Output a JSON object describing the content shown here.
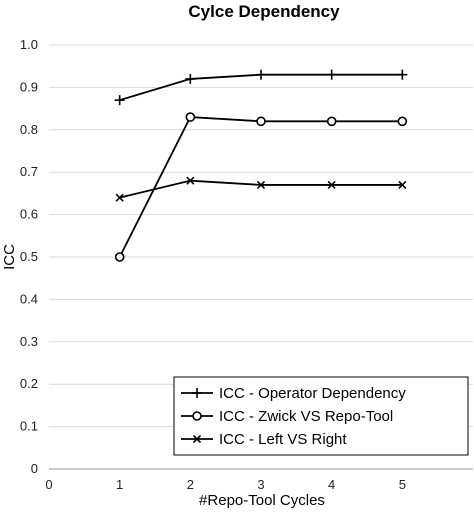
{
  "chart_data": {
    "type": "line",
    "title": "Cylce Dependency",
    "xlabel": "#Repo-Tool Cycles",
    "ylabel": "ICC",
    "xlim": [
      0,
      6
    ],
    "ylim": [
      0,
      1.0
    ],
    "x_ticks": [
      "0",
      "1",
      "2",
      "3",
      "4",
      "5"
    ],
    "y_ticks": [
      "0",
      "0.1",
      "0.2",
      "0.3",
      "0.4",
      "0.5",
      "0.6",
      "0.7",
      "0.8",
      "0.9",
      "1.0"
    ],
    "grid": "horizontal",
    "legend_position": "bottom-right",
    "x": [
      1,
      2,
      3,
      4,
      5
    ],
    "series": [
      {
        "name": "ICC - Operator Dependency",
        "marker": "plus",
        "values": [
          0.87,
          0.92,
          0.93,
          0.93,
          0.93
        ]
      },
      {
        "name": "ICC - Zwick VS Repo-Tool",
        "marker": "circle",
        "values": [
          0.5,
          0.83,
          0.82,
          0.82,
          0.82
        ]
      },
      {
        "name": "ICC - Left VS Right",
        "marker": "x",
        "values": [
          0.64,
          0.68,
          0.67,
          0.67,
          0.67
        ]
      }
    ],
    "colors": {
      "line": "#000000",
      "grid": "#d9d9d9",
      "axis": "#999999"
    }
  }
}
